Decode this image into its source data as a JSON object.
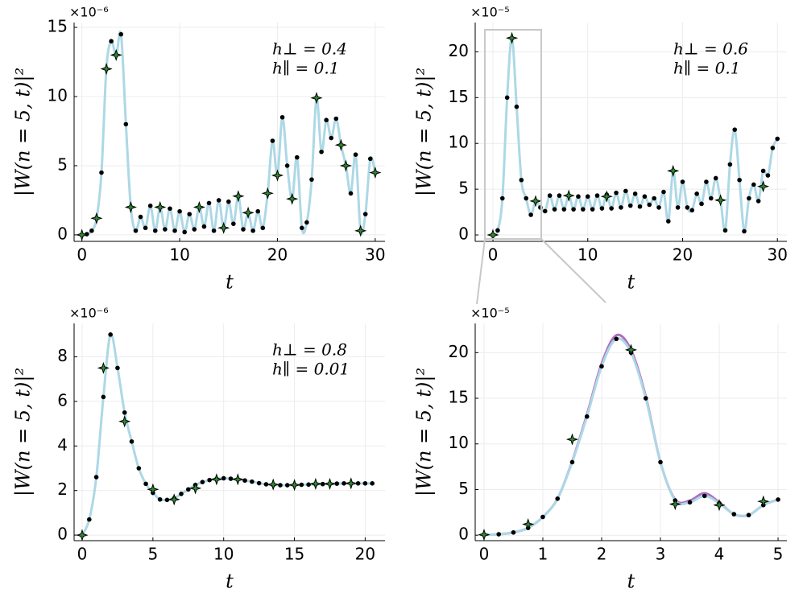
{
  "chart_data": [
    {
      "type": "line",
      "xlabel": "t",
      "ylabel": "|W(n = 5, t)|²",
      "exponent": "×10⁻⁶",
      "annotations": [
        "h⊥ = 0.4",
        "h∥ = 0.1"
      ],
      "xlim": [
        -0.8,
        31
      ],
      "ylim": [
        -0.47,
        15.35
      ],
      "xticks": [
        0,
        10,
        20,
        30
      ],
      "yticks": [
        0,
        5,
        10,
        15
      ],
      "grid": true,
      "x": [
        0,
        0.5,
        1,
        1.5,
        2,
        2.5,
        3,
        3.5,
        4,
        4.5,
        5,
        5.5,
        6,
        6.5,
        7,
        7.5,
        8,
        8.5,
        9,
        9.5,
        10,
        10.5,
        11,
        11.5,
        12,
        12.5,
        13,
        13.5,
        14,
        14.5,
        15,
        15.5,
        16,
        16.5,
        17,
        17.5,
        18,
        18.5,
        19,
        19.5,
        20,
        20.5,
        21,
        21.5,
        22,
        22.5,
        23,
        23.5,
        24,
        24.5,
        25,
        25.5,
        26,
        26.5,
        27,
        27.5,
        28,
        28.5,
        29,
        29.5,
        30
      ],
      "series": [
        {
          "style": "line",
          "color": "#add8e6",
          "values": [
            0,
            0.05,
            0.3,
            1.2,
            4.5,
            12,
            14,
            13,
            14.5,
            8,
            2,
            0.3,
            1.3,
            0.5,
            2.1,
            0.3,
            2.0,
            0.4,
            1.9,
            0.3,
            1.7,
            0.2,
            1.5,
            0.4,
            2.0,
            0.6,
            2.3,
            0.3,
            2.5,
            0.5,
            2.4,
            0.8,
            2.8,
            0.4,
            1.6,
            0.3,
            1.7,
            0.5,
            3,
            6.8,
            4.3,
            8.5,
            5,
            2.6,
            5.6,
            0.5,
            0.9,
            4,
            9.9,
            6,
            8.3,
            7,
            8.4,
            6.5,
            5,
            3,
            5.8,
            0.3,
            1.5,
            5.5,
            4.5
          ]
        },
        {
          "style": "dots",
          "color": "#000000",
          "values": [
            0,
            0.05,
            0.3,
            1.2,
            4.5,
            12,
            14,
            13,
            14.5,
            8,
            2,
            0.3,
            1.3,
            0.5,
            2.1,
            0.3,
            2.0,
            0.4,
            1.9,
            0.3,
            1.7,
            0.2,
            1.5,
            0.4,
            2.0,
            0.6,
            2.3,
            0.3,
            2.5,
            0.5,
            2.4,
            0.8,
            2.8,
            0.4,
            1.6,
            0.3,
            1.7,
            0.5,
            3,
            6.8,
            4.3,
            8.5,
            5,
            2.6,
            5.6,
            0.5,
            0.9,
            4,
            9.9,
            6,
            8.3,
            7,
            8.4,
            6.5,
            5,
            3,
            5.8,
            0.3,
            1.5,
            5.5,
            4.5
          ]
        },
        {
          "style": "stars",
          "color": "#2e8b2e",
          "x": [
            0,
            1.5,
            2.5,
            3.5,
            5,
            8,
            12,
            14.5,
            16,
            17,
            19,
            20,
            21.5,
            24,
            26.5,
            27,
            28.5,
            30
          ],
          "values": [
            0,
            1.2,
            12,
            13,
            2,
            2.0,
            2.0,
            0.5,
            2.8,
            1.6,
            3,
            4.3,
            2.6,
            9.9,
            6.5,
            5,
            0.3,
            4.5
          ]
        }
      ]
    },
    {
      "type": "line",
      "xlabel": "t",
      "ylabel": "|W(n = 5, t)|²",
      "exponent": "×10⁻⁵",
      "annotations": [
        "h⊥ = 0.6",
        "h∥ = 0.1"
      ],
      "xlim": [
        -1.87,
        31
      ],
      "ylim": [
        -0.7,
        23.2
      ],
      "xticks": [
        0,
        10,
        20,
        30
      ],
      "yticks": [
        0,
        5,
        10,
        15,
        20
      ],
      "grid": true,
      "x": [
        0,
        0.5,
        1,
        1.5,
        2,
        2.5,
        3,
        3.5,
        4,
        4.5,
        5,
        5.5,
        6,
        6.5,
        7,
        7.5,
        8,
        8.5,
        9,
        9.5,
        10,
        10.5,
        11,
        11.5,
        12,
        12.5,
        13,
        13.5,
        14,
        14.5,
        15,
        15.5,
        16,
        16.5,
        17,
        17.5,
        18,
        18.5,
        19,
        19.5,
        20,
        20.5,
        21,
        21.5,
        22,
        22.5,
        23,
        23.5,
        24,
        24.5,
        25,
        25.5,
        26,
        26.5,
        27,
        27.5,
        28,
        28.5,
        29,
        29.5,
        30
      ],
      "series": [
        {
          "style": "line",
          "color": "#add8e6",
          "values": [
            0,
            0.5,
            4,
            15,
            21.5,
            14,
            6,
            4,
            2.2,
            3.7,
            3,
            2.6,
            4.3,
            2.8,
            4.3,
            2.8,
            4.3,
            2.8,
            4.2,
            2.8,
            4.2,
            2.8,
            4.3,
            2.9,
            4.4,
            2.9,
            4.6,
            3.0,
            4.8,
            3.2,
            4.5,
            3.1,
            4.2,
            3.3,
            4.0,
            3.0,
            4.7,
            1.5,
            7,
            3,
            5.8,
            3,
            2.7,
            4.5,
            3.4,
            5.8,
            4,
            6.2,
            3.8,
            0.5,
            7.7,
            11.5,
            6,
            0.4,
            4,
            5.5,
            3.7,
            7,
            6.5,
            9.5,
            10.5
          ]
        },
        {
          "style": "dots",
          "color": "#000000",
          "values": [
            0,
            0.5,
            4,
            15,
            21.5,
            14,
            6,
            4,
            2.2,
            3.7,
            3,
            2.6,
            4.3,
            2.8,
            4.3,
            2.8,
            4.3,
            2.8,
            4.2,
            2.8,
            4.2,
            2.8,
            4.3,
            2.9,
            4.4,
            2.9,
            4.6,
            3.0,
            4.8,
            3.2,
            4.5,
            3.1,
            4.2,
            3.3,
            4.0,
            3.0,
            4.7,
            1.5,
            7,
            3,
            5.8,
            3,
            2.7,
            4.5,
            3.4,
            5.8,
            4,
            6.2,
            3.8,
            0.5,
            7.7,
            11.5,
            6,
            0.4,
            4,
            5.5,
            3.7,
            7,
            6.5,
            9.5,
            10.5
          ]
        },
        {
          "style": "stars",
          "color": "#2e8b2e",
          "x": [
            0,
            2,
            4.5,
            8,
            12,
            19,
            24,
            28.5
          ],
          "values": [
            0,
            21.5,
            3.7,
            4.3,
            4.2,
            7,
            3.8,
            5.3
          ]
        }
      ]
    },
    {
      "type": "line",
      "xlabel": "t",
      "ylabel": "|W(n = 5, t)|²",
      "exponent": "×10⁻⁶",
      "annotations": [
        "h⊥ = 0.8",
        "h∥ = 0.01"
      ],
      "xlim": [
        -0.57,
        21.4
      ],
      "ylim": [
        -0.25,
        9.5
      ],
      "xticks": [
        0,
        5,
        10,
        15,
        20
      ],
      "yticks": [
        0,
        2,
        4,
        6,
        8
      ],
      "grid": true,
      "x": [
        0,
        0.5,
        1,
        1.5,
        2,
        2.5,
        3,
        3.5,
        4,
        4.5,
        5,
        5.5,
        6,
        6.5,
        7,
        7.5,
        8,
        8.5,
        9,
        9.5,
        10,
        10.5,
        11,
        11.5,
        12,
        12.5,
        13,
        13.5,
        14,
        14.5,
        15,
        15.5,
        16,
        16.5,
        17,
        17.5,
        18,
        18.5,
        19,
        19.5,
        20,
        20.5
      ],
      "series": [
        {
          "style": "line",
          "color": "#add8e6",
          "values": [
            0,
            0.7,
            2.6,
            6.2,
            9,
            7.5,
            5.5,
            4.2,
            3,
            2.3,
            1.9,
            1.6,
            1.58,
            1.65,
            1.85,
            2.05,
            2.25,
            2.38,
            2.47,
            2.52,
            2.55,
            2.53,
            2.5,
            2.45,
            2.4,
            2.33,
            2.28,
            2.25,
            2.24,
            2.24,
            2.25,
            2.26,
            2.27,
            2.28,
            2.29,
            2.3,
            2.31,
            2.32,
            2.32,
            2.32,
            2.32,
            2.32
          ]
        },
        {
          "style": "dots",
          "color": "#000000",
          "values": [
            0,
            0.7,
            2.6,
            6.2,
            9,
            7.5,
            5.5,
            4.2,
            3,
            2.3,
            1.9,
            1.6,
            1.58,
            1.65,
            1.85,
            2.05,
            2.25,
            2.38,
            2.47,
            2.52,
            2.55,
            2.53,
            2.5,
            2.45,
            2.4,
            2.33,
            2.28,
            2.25,
            2.24,
            2.24,
            2.25,
            2.26,
            2.27,
            2.28,
            2.29,
            2.3,
            2.31,
            2.32,
            2.32,
            2.32,
            2.32,
            2.32
          ]
        },
        {
          "style": "stars",
          "color": "#2e8b2e",
          "x": [
            0,
            1.5,
            3,
            5,
            6.5,
            8,
            9.5,
            11,
            13.5,
            15,
            16.5,
            17.5,
            19
          ],
          "values": [
            0,
            7.5,
            5.1,
            2.05,
            1.6,
            2.1,
            2.5,
            2.5,
            2.27,
            2.25,
            2.3,
            2.3,
            2.32
          ]
        }
      ]
    },
    {
      "type": "line",
      "xlabel": "t",
      "ylabel": "|W(n = 5, t)|²",
      "exponent": "×10⁻⁵",
      "xlim": [
        -0.15,
        5.15
      ],
      "ylim": [
        -0.6,
        23.2
      ],
      "xticks": [
        0,
        1,
        2,
        3,
        4,
        5
      ],
      "yticks": [
        0,
        5,
        10,
        15,
        20
      ],
      "grid": true,
      "x": [
        0,
        0.25,
        0.5,
        0.75,
        1,
        1.25,
        1.5,
        1.75,
        2,
        2.25,
        2.5,
        2.75,
        3,
        3.25,
        3.5,
        3.75,
        4,
        4.25,
        4.5,
        4.75,
        5
      ],
      "series": [
        {
          "style": "line",
          "color": "#b070c0",
          "values": [
            0.05,
            0.1,
            0.3,
            0.8,
            2,
            4,
            8.1,
            13.2,
            18.8,
            21.9,
            20.3,
            15.2,
            8,
            3.9,
            3.8,
            4.6,
            3.6,
            2.3,
            2.2,
            3.3,
            3.9
          ]
        },
        {
          "style": "line",
          "color": "#add8e6",
          "values": [
            0.05,
            0.1,
            0.3,
            0.8,
            2,
            4,
            8,
            13,
            18.5,
            21.5,
            20,
            15,
            8,
            3.8,
            3.6,
            4.3,
            3.5,
            2.3,
            2.2,
            3.3,
            3.9
          ]
        },
        {
          "style": "dots",
          "color": "#000000",
          "values": [
            0.05,
            0.1,
            0.3,
            0.8,
            2,
            4,
            8,
            13,
            18.5,
            21.5,
            20,
            15,
            8,
            3.8,
            3.6,
            4.3,
            3.5,
            2.3,
            2.2,
            3.3,
            3.9
          ]
        },
        {
          "style": "stars",
          "color": "#2e8b2e",
          "x": [
            0,
            0.75,
            1.5,
            2.5,
            3.25,
            4,
            4.75
          ],
          "values": [
            0.05,
            1.2,
            10.5,
            20.3,
            3.4,
            3.3,
            3.7
          ]
        }
      ]
    }
  ]
}
